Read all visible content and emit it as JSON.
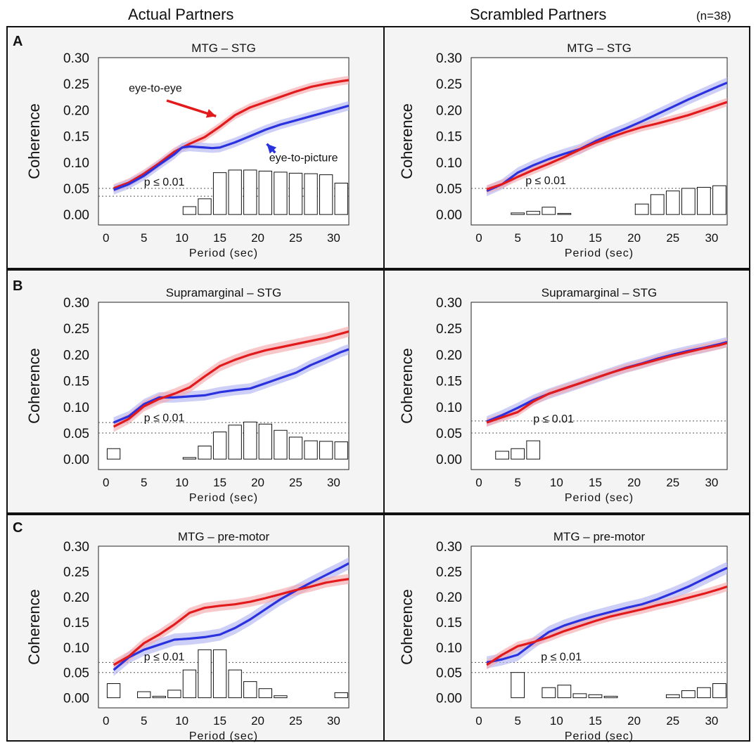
{
  "headers": {
    "left": "Actual Partners",
    "right": "Scrambled Partners",
    "n": "(n=38)"
  },
  "panel_letters": [
    "A",
    "B",
    "C"
  ],
  "colors": {
    "eye_to_eye": "#e31a1c",
    "eye_to_picture": "#2a32e0",
    "eye_to_eye_band": "#f4a9ad",
    "eye_to_picture_band": "#b3b6f2",
    "bars": "#111111"
  },
  "chart_data": [
    {
      "id": "A-actual",
      "type": "line",
      "title": "MTG – STG",
      "xlabel": "Period (sec)",
      "ylabel": "Coherence",
      "xlim": [
        -1,
        32
      ],
      "ylim": [
        -0.02,
        0.3
      ],
      "xticks": [
        "0",
        "5",
        "10",
        "15",
        "20",
        "25",
        "30"
      ],
      "xtick_values": [
        0,
        5,
        10,
        15,
        20,
        25,
        30
      ],
      "yticks": [
        "0.00",
        "0.05",
        "0.10",
        "0.15",
        "0.20",
        "0.25",
        "0.30"
      ],
      "ytick_values": [
        0,
        0.05,
        0.1,
        0.15,
        0.2,
        0.25,
        0.3
      ],
      "significance_label": "p ≤ 0.01",
      "significance_lines": [
        0.05,
        0.035
      ],
      "significance_label_at": [
        5,
        0.055
      ],
      "series": [
        {
          "name": "eye-to-eye",
          "x": [
            1,
            3,
            5,
            7,
            9,
            11,
            13,
            15,
            17,
            19,
            21,
            23,
            25,
            27,
            29,
            31,
            32
          ],
          "y": [
            0.05,
            0.061,
            0.078,
            0.098,
            0.12,
            0.135,
            0.148,
            0.168,
            0.19,
            0.205,
            0.215,
            0.225,
            0.235,
            0.244,
            0.25,
            0.255,
            0.257
          ],
          "band": 0.008
        },
        {
          "name": "eye-to-picture",
          "x": [
            1,
            3,
            5,
            7,
            9,
            10,
            11,
            13,
            14,
            15,
            17,
            19,
            21,
            23,
            25,
            27,
            29,
            31,
            32
          ],
          "y": [
            0.047,
            0.058,
            0.074,
            0.095,
            0.115,
            0.128,
            0.13,
            0.128,
            0.127,
            0.128,
            0.138,
            0.15,
            0.162,
            0.172,
            0.18,
            0.188,
            0.196,
            0.204,
            0.208
          ],
          "band": 0.009
        }
      ],
      "bars": {
        "x": [
          11,
          13,
          15,
          17,
          19,
          21,
          23,
          25,
          27,
          29,
          31
        ],
        "height": [
          0.015,
          0.03,
          0.08,
          0.085,
          0.085,
          0.083,
          0.081,
          0.079,
          0.078,
          0.076,
          0.06
        ],
        "width": 1.7
      },
      "annotations": [
        {
          "text": "eye-to-eye",
          "text_at": [
            3,
            0.235
          ],
          "arrow_from": [
            8,
            0.218
          ],
          "arrow_to": [
            14.5,
            0.188
          ],
          "color": "#e31a1c"
        },
        {
          "text": "eye-to-picture",
          "text_at": [
            21.5,
            0.102
          ],
          "arrow_from": [
            22.3,
            0.118
          ],
          "arrow_to": [
            21.2,
            0.135
          ],
          "color": "#2a32e0"
        }
      ]
    },
    {
      "id": "A-scrambled",
      "type": "line",
      "title": "MTG – STG",
      "xlabel": "Period (sec)",
      "ylabel": "Coherence",
      "xlim": [
        -1,
        32
      ],
      "ylim": [
        -0.02,
        0.3
      ],
      "xticks": [
        "0",
        "5",
        "10",
        "15",
        "20",
        "25",
        "30"
      ],
      "xtick_values": [
        0,
        5,
        10,
        15,
        20,
        25,
        30
      ],
      "yticks": [
        "0.00",
        "0.05",
        "0.10",
        "0.15",
        "0.20",
        "0.25",
        "0.30"
      ],
      "ytick_values": [
        0,
        0.05,
        0.1,
        0.15,
        0.2,
        0.25,
        0.3
      ],
      "significance_label": "p ≤ 0.01",
      "significance_lines": [
        0.05
      ],
      "significance_label_at": [
        6,
        0.058
      ],
      "series": [
        {
          "name": "eye-to-picture",
          "x": [
            1,
            3,
            5,
            7,
            9,
            11,
            13,
            15,
            17,
            19,
            21,
            23,
            25,
            27,
            29,
            31,
            32
          ],
          "y": [
            0.045,
            0.058,
            0.08,
            0.094,
            0.106,
            0.116,
            0.125,
            0.14,
            0.153,
            0.165,
            0.178,
            0.192,
            0.206,
            0.22,
            0.233,
            0.246,
            0.252
          ],
          "band": 0.01
        },
        {
          "name": "eye-to-eye",
          "x": [
            1,
            3,
            5,
            7,
            9,
            11,
            13,
            15,
            17,
            19,
            21,
            23,
            25,
            27,
            29,
            31,
            32
          ],
          "y": [
            0.048,
            0.058,
            0.072,
            0.085,
            0.097,
            0.11,
            0.124,
            0.137,
            0.148,
            0.158,
            0.167,
            0.174,
            0.182,
            0.19,
            0.2,
            0.21,
            0.215
          ],
          "band": 0.008
        }
      ],
      "bars": {
        "x": [
          5,
          7,
          9,
          11,
          21,
          23,
          25,
          27,
          29,
          31
        ],
        "height": [
          0.003,
          0.006,
          0.014,
          0.002,
          0.02,
          0.038,
          0.045,
          0.05,
          0.052,
          0.055
        ],
        "width": 1.7
      }
    },
    {
      "id": "B-actual",
      "type": "line",
      "title": "Supramarginal –  STG",
      "xlabel": "Period (sec)",
      "ylabel": "Coherence",
      "xlim": [
        -1,
        32
      ],
      "ylim": [
        -0.02,
        0.3
      ],
      "xticks": [
        "0",
        "5",
        "10",
        "15",
        "20",
        "25",
        "30"
      ],
      "xtick_values": [
        0,
        5,
        10,
        15,
        20,
        25,
        30
      ],
      "yticks": [
        "0.00",
        "0.05",
        "0.10",
        "0.15",
        "0.20",
        "0.25",
        "0.30"
      ],
      "ytick_values": [
        0,
        0.05,
        0.1,
        0.15,
        0.2,
        0.25,
        0.3
      ],
      "significance_label": "p ≤ 0.01",
      "significance_lines": [
        0.07,
        0.05
      ],
      "significance_label_at": [
        5,
        0.072
      ],
      "series": [
        {
          "name": "eye-to-picture",
          "x": [
            1,
            3,
            5,
            7,
            9,
            11,
            13,
            15,
            17,
            19,
            21,
            23,
            25,
            27,
            29,
            31,
            32
          ],
          "y": [
            0.07,
            0.082,
            0.105,
            0.118,
            0.118,
            0.12,
            0.122,
            0.128,
            0.132,
            0.135,
            0.145,
            0.155,
            0.165,
            0.18,
            0.192,
            0.205,
            0.21
          ],
          "band": 0.01
        },
        {
          "name": "eye-to-eye",
          "x": [
            1,
            3,
            5,
            7,
            9,
            11,
            13,
            15,
            17,
            19,
            21,
            23,
            25,
            27,
            29,
            31,
            32
          ],
          "y": [
            0.062,
            0.077,
            0.101,
            0.115,
            0.125,
            0.137,
            0.158,
            0.178,
            0.19,
            0.2,
            0.208,
            0.214,
            0.22,
            0.226,
            0.232,
            0.24,
            0.244
          ],
          "band": 0.01
        }
      ],
      "bars": {
        "x": [
          1,
          11,
          13,
          15,
          17,
          19,
          21,
          23,
          25,
          27,
          29,
          31
        ],
        "height": [
          0.02,
          0.003,
          0.025,
          0.052,
          0.065,
          0.071,
          0.067,
          0.055,
          0.042,
          0.035,
          0.034,
          0.033
        ],
        "width": 1.7
      }
    },
    {
      "id": "B-scrambled",
      "type": "line",
      "title": "Supramarginal –  STG",
      "xlabel": "Period (sec)",
      "ylabel": "Coherence",
      "xlim": [
        -1,
        32
      ],
      "ylim": [
        -0.02,
        0.3
      ],
      "xticks": [
        "0",
        "5",
        "10",
        "15",
        "20",
        "25",
        "30"
      ],
      "xtick_values": [
        0,
        5,
        10,
        15,
        20,
        25,
        30
      ],
      "yticks": [
        "0.00",
        "0.05",
        "0.10",
        "0.15",
        "0.20",
        "0.25",
        "0.30"
      ],
      "ytick_values": [
        0,
        0.05,
        0.1,
        0.15,
        0.2,
        0.25,
        0.3
      ],
      "significance_label": "p ≤ 0.01",
      "significance_lines": [
        0.073,
        0.05
      ],
      "significance_label_at": [
        7,
        0.07
      ],
      "series": [
        {
          "name": "eye-to-picture",
          "x": [
            1,
            3,
            5,
            7,
            9,
            11,
            13,
            15,
            17,
            19,
            21,
            23,
            25,
            27,
            29,
            31,
            32
          ],
          "y": [
            0.072,
            0.084,
            0.098,
            0.113,
            0.125,
            0.135,
            0.145,
            0.155,
            0.165,
            0.175,
            0.183,
            0.192,
            0.2,
            0.207,
            0.213,
            0.22,
            0.224
          ],
          "band": 0.01
        },
        {
          "name": "eye-to-eye",
          "x": [
            1,
            3,
            5,
            7,
            9,
            11,
            13,
            15,
            17,
            19,
            21,
            23,
            25,
            27,
            29,
            31,
            32
          ],
          "y": [
            0.07,
            0.08,
            0.09,
            0.11,
            0.125,
            0.135,
            0.145,
            0.155,
            0.165,
            0.174,
            0.182,
            0.19,
            0.198,
            0.205,
            0.212,
            0.218,
            0.222
          ],
          "band": 0.008
        }
      ],
      "bars": {
        "x": [
          3,
          5,
          7
        ],
        "height": [
          0.015,
          0.02,
          0.035
        ],
        "width": 1.7
      }
    },
    {
      "id": "C-actual",
      "type": "line",
      "title": "MTG – pre-motor",
      "xlabel": "Period (sec)",
      "ylabel": "Coherence",
      "xlim": [
        -1,
        32
      ],
      "ylim": [
        -0.02,
        0.3
      ],
      "xticks": [
        "0",
        "5",
        "10",
        "15",
        "20",
        "25",
        "30"
      ],
      "xtick_values": [
        0,
        5,
        10,
        15,
        20,
        25,
        30
      ],
      "yticks": [
        "0.00",
        "0.05",
        "0.10",
        "0.15",
        "0.20",
        "0.25",
        "0.30"
      ],
      "ytick_values": [
        0,
        0.05,
        0.1,
        0.15,
        0.2,
        0.25,
        0.3
      ],
      "significance_label": "p ≤ 0.01",
      "significance_lines": [
        0.07,
        0.05
      ],
      "significance_label_at": [
        5,
        0.074
      ],
      "series": [
        {
          "name": "eye-to-picture",
          "x": [
            1,
            3,
            5,
            7,
            9,
            11,
            13,
            15,
            17,
            19,
            21,
            23,
            25,
            27,
            29,
            31,
            32
          ],
          "y": [
            0.055,
            0.08,
            0.095,
            0.105,
            0.115,
            0.117,
            0.12,
            0.125,
            0.138,
            0.155,
            0.175,
            0.195,
            0.212,
            0.228,
            0.243,
            0.258,
            0.266
          ],
          "band": 0.012
        },
        {
          "name": "eye-to-eye",
          "x": [
            1,
            3,
            5,
            7,
            9,
            11,
            13,
            15,
            17,
            19,
            21,
            23,
            25,
            27,
            29,
            31,
            32
          ],
          "y": [
            0.065,
            0.082,
            0.108,
            0.125,
            0.145,
            0.168,
            0.178,
            0.182,
            0.185,
            0.19,
            0.197,
            0.205,
            0.213,
            0.22,
            0.228,
            0.233,
            0.235
          ],
          "band": 0.01
        }
      ],
      "bars": {
        "x": [
          1,
          5,
          7,
          9,
          11,
          13,
          15,
          17,
          19,
          21,
          23,
          31
        ],
        "height": [
          0.028,
          0.012,
          0.003,
          0.015,
          0.055,
          0.095,
          0.095,
          0.055,
          0.032,
          0.018,
          0.004,
          0.01
        ],
        "width": 1.7
      }
    },
    {
      "id": "C-scrambled",
      "type": "line",
      "title": "MTG – pre-motor",
      "xlabel": "Period (sec)",
      "ylabel": "Coherence",
      "xlim": [
        -1,
        32
      ],
      "ylim": [
        -0.02,
        0.3
      ],
      "xticks": [
        "0",
        "5",
        "10",
        "15",
        "20",
        "25",
        "30"
      ],
      "xtick_values": [
        0,
        5,
        10,
        15,
        20,
        25,
        30
      ],
      "yticks": [
        "0.00",
        "0.05",
        "0.10",
        "0.15",
        "0.20",
        "0.25",
        "0.30"
      ],
      "ytick_values": [
        0,
        0.05,
        0.1,
        0.15,
        0.2,
        0.25,
        0.3
      ],
      "significance_label": "p ≤ 0.01",
      "significance_lines": [
        0.07,
        0.05
      ],
      "significance_label_at": [
        8,
        0.074
      ],
      "series": [
        {
          "name": "eye-to-picture",
          "x": [
            1,
            3,
            5,
            7,
            9,
            11,
            13,
            15,
            17,
            19,
            21,
            23,
            25,
            27,
            29,
            31,
            32
          ],
          "y": [
            0.07,
            0.076,
            0.085,
            0.108,
            0.13,
            0.143,
            0.153,
            0.162,
            0.17,
            0.178,
            0.185,
            0.195,
            0.207,
            0.22,
            0.235,
            0.25,
            0.257
          ],
          "band": 0.012
        },
        {
          "name": "eye-to-eye",
          "x": [
            1,
            3,
            5,
            7,
            9,
            11,
            13,
            15,
            17,
            19,
            21,
            23,
            25,
            27,
            29,
            31,
            32
          ],
          "y": [
            0.065,
            0.085,
            0.102,
            0.11,
            0.12,
            0.132,
            0.142,
            0.152,
            0.161,
            0.168,
            0.175,
            0.183,
            0.19,
            0.198,
            0.206,
            0.215,
            0.22
          ],
          "band": 0.009
        }
      ],
      "bars": {
        "x": [
          5,
          9,
          11,
          13,
          15,
          17,
          25,
          27,
          29,
          31
        ],
        "height": [
          0.05,
          0.02,
          0.025,
          0.008,
          0.006,
          0.003,
          0.006,
          0.014,
          0.02,
          0.028
        ],
        "width": 1.7
      }
    }
  ]
}
